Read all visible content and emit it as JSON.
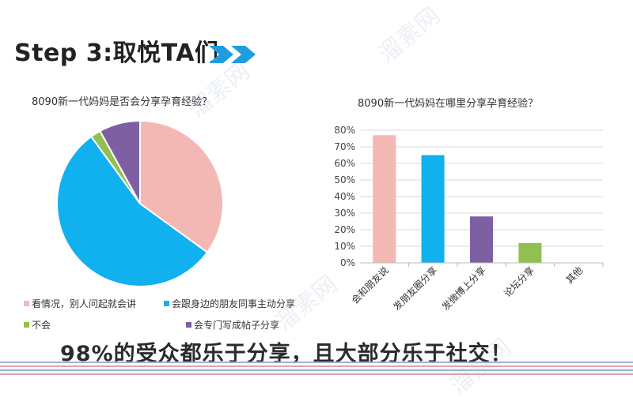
{
  "header": {
    "title": "Step 3:取悦TA们"
  },
  "summary": "98%的受众都乐于分享，且大部分乐于社交！",
  "watermark": "溜素网",
  "chart_data": [
    {
      "type": "pie",
      "title": "8090新一代妈妈是否会分享孕育经验？",
      "slices": [
        {
          "label": "看情况，别人问起就会讲",
          "value": 35,
          "color": "#f4b8b4"
        },
        {
          "label": "会跟身边的朋友同事主动分享",
          "value": 55,
          "color": "#11b0ef"
        },
        {
          "label": "不会",
          "value": 2,
          "color": "#92c050"
        },
        {
          "label": "会专门写成帖子分享",
          "value": 8,
          "color": "#7e60a2"
        }
      ]
    },
    {
      "type": "bar",
      "title": "8090新一代妈妈在哪里分享孕育经验？",
      "categories": [
        "会和朋友说",
        "发朋友圈分享",
        "发微博上分享",
        "论坛分享",
        "其他"
      ],
      "values": [
        77,
        65,
        28,
        12,
        0
      ],
      "colors": [
        "#f4b8b4",
        "#11b0ef",
        "#7e60a2",
        "#92c050",
        "#cccccc"
      ],
      "yticks": [
        "0%",
        "10%",
        "20%",
        "30%",
        "40%",
        "50%",
        "60%",
        "70%",
        "80%"
      ],
      "ylim": [
        0,
        80
      ]
    }
  ],
  "colors": {
    "arrow": "#1f9de0",
    "stripe_blue": "#9ab3d3",
    "stripe_red": "#e2a3a3"
  }
}
